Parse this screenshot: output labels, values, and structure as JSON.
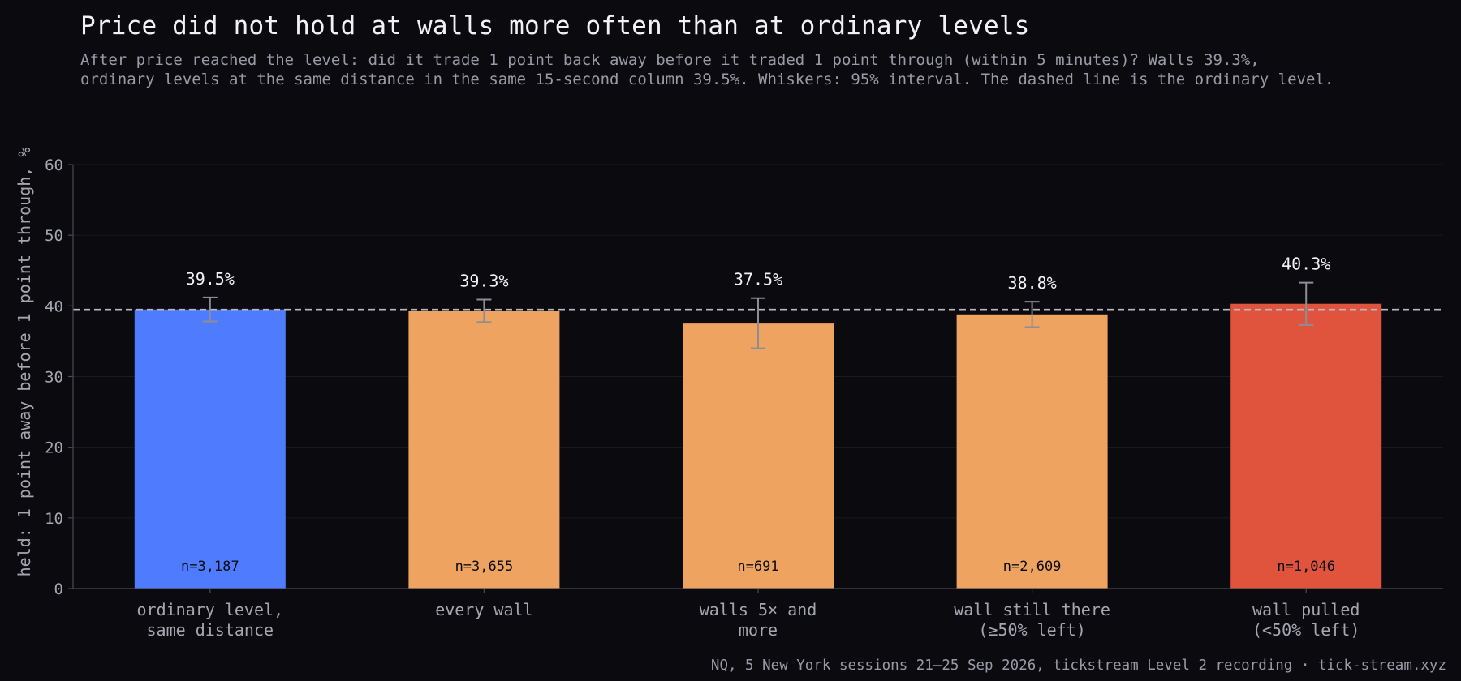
{
  "title": "Price did not hold at walls more often than at ordinary levels",
  "subtitle": [
    "After price reached the level: did it trade 1 point back away before it traded 1 point through (within 5 minutes)? Walls 39.3%,",
    "ordinary levels at the same distance in the same 15-second column 39.5%. Whiskers: 95% interval. The dashed line is the ordinary level."
  ],
  "footer": "NQ, 5 New York sessions 21–25 Sep 2026, tickstream Level 2 recording · tick-stream.xyz",
  "chart_data": {
    "type": "bar",
    "ylabel": "held: 1 point away before 1 point through, %",
    "xlabel": "",
    "ylim": [
      0,
      60
    ],
    "yticks": [
      0,
      10,
      20,
      30,
      40,
      50,
      60
    ],
    "grid": true,
    "reference_line": 39.5,
    "categories": [
      [
        "ordinary level,",
        "same distance"
      ],
      [
        "every wall"
      ],
      [
        "walls 5× and",
        "more"
      ],
      [
        "wall still there",
        "(≥50% left)"
      ],
      [
        "wall pulled",
        "(<50% left)"
      ]
    ],
    "values": [
      39.5,
      39.3,
      37.5,
      38.8,
      40.3
    ],
    "value_labels": [
      "39.5%",
      "39.3%",
      "37.5%",
      "38.8%",
      "40.3%"
    ],
    "ci_low": [
      37.8,
      37.7,
      34.0,
      37.0,
      37.3
    ],
    "ci_high": [
      41.2,
      40.9,
      41.1,
      40.6,
      43.3
    ],
    "n_labels": [
      "n=3,187",
      "n=3,655",
      "n=691",
      "n=2,609",
      "n=1,046"
    ],
    "colors": [
      "#4f7cff",
      "#efa361",
      "#efa361",
      "#efa361",
      "#e0533d"
    ],
    "colors_meta": {
      "background": "#0b0b0f",
      "axis": "#4a4a52",
      "grid": "#1a1a1f",
      "whisker": "#8d8d96",
      "reference": "#b8b8c2"
    }
  }
}
